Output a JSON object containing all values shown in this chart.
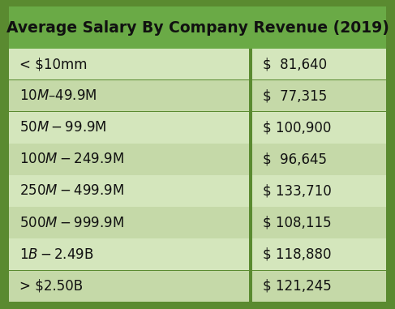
{
  "title": "Average Salary By Company Revenue (2019)",
  "title_bg_color": "#6aaa46",
  "title_text_color": "#111111",
  "header_font_size": 13.5,
  "row_font_size": 12,
  "categories": [
    "< $10mm",
    "$10M – $49.9M",
    "$50M - $99.9M",
    "$100M - $249.9M",
    "$250M - $499.9M",
    "$500M - $999.9M",
    "$1B - $2.49B",
    "> $2.50B"
  ],
  "values": [
    "$  81,640",
    "$  77,315",
    "$ 100,900",
    "$  96,645",
    "$ 133,710",
    "$ 108,115",
    "$ 118,880",
    "$ 121,245"
  ],
  "row_colors": [
    "#d4e6bc",
    "#c5d9a8"
  ],
  "border_color": "#5a8a30",
  "text_color": "#111111",
  "col_split": 0.635,
  "border_width": 4
}
